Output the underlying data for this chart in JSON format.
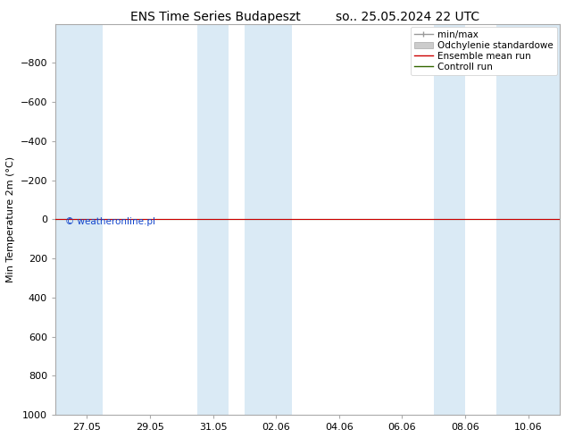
{
  "title_left": "ENS Time Series Budapeszt",
  "title_right": "so.. 25.05.2024 22 UTC",
  "ylabel": "Min Temperature 2m (°C)",
  "ylim_top": -1000,
  "ylim_bottom": 1000,
  "yticks": [
    -800,
    -600,
    -400,
    -200,
    0,
    200,
    400,
    600,
    800,
    1000
  ],
  "xtick_labels": [
    "27.05",
    "29.05",
    "31.05",
    "02.06",
    "04.06",
    "06.06",
    "08.06",
    "10.06"
  ],
  "xtick_positions": [
    1,
    3,
    5,
    7,
    9,
    11,
    13,
    15
  ],
  "xlim": [
    0,
    16
  ],
  "blue_bands": [
    [
      0,
      1.5
    ],
    [
      4.5,
      5.5
    ],
    [
      6,
      7.5
    ],
    [
      12,
      13
    ],
    [
      14,
      16
    ]
  ],
  "blue_band_color": "#daeaf5",
  "ensemble_mean_color": "#cc0000",
  "control_run_color": "#336600",
  "min_max_color": "#999999",
  "std_dev_color": "#cccccc",
  "copyright_text": "© weatheronline.pl",
  "copyright_color": "#1144cc",
  "plot_bg_color": "#ffffff",
  "fig_bg_color": "#ffffff",
  "title_fontsize": 10,
  "axis_label_fontsize": 8,
  "tick_fontsize": 8,
  "legend_fontsize": 7.5,
  "spine_color": "#aaaaaa"
}
